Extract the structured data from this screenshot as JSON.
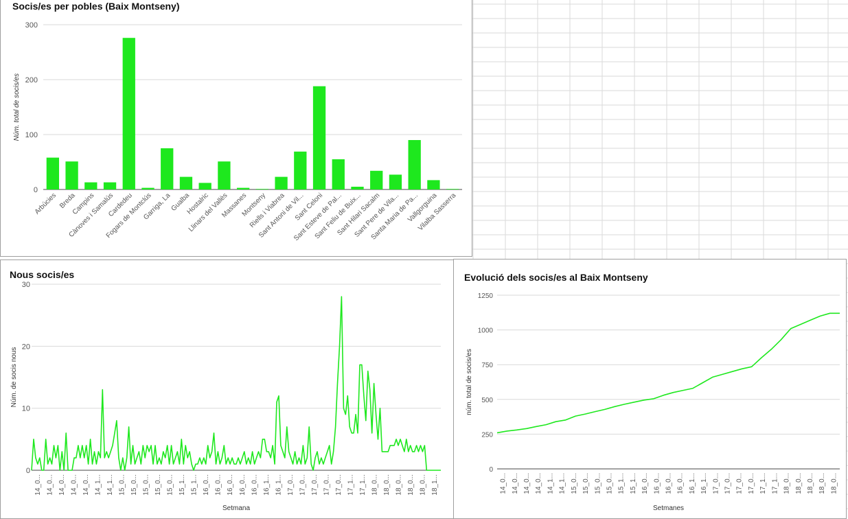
{
  "colors": {
    "series": "#1ee81e",
    "grid": "#d9d9d9",
    "axis": "#444444",
    "sheet_grid": "#dadada",
    "panel_border": "#9e9e9e"
  },
  "chart_data": [
    {
      "id": "bar",
      "type": "bar",
      "title": "Socis/es per pobles (Baix Montseny)",
      "xlabel": "",
      "ylabel": "Núm. total de socis/es",
      "ylim": [
        0,
        300
      ],
      "yticks": [
        0,
        100,
        200,
        300
      ],
      "grid": true,
      "legend": "none",
      "categories": [
        "Arbúcies",
        "Breda",
        "Campins",
        "Cànoves i Samalús",
        "Cardedeu",
        "Fogars de Montclús",
        "Garriga, La",
        "Gualba",
        "Hostalric",
        "Llinars del Vallès",
        "Massanes",
        "Montseny",
        "Riells i Viabrea",
        "Sant Antoni de Vil...",
        "Sant Celoni",
        "Sant Esteve de Pal...",
        "Sant Feliu de Buix...",
        "Sant Hilari Sacalm",
        "Sant Pere de Vila...",
        "Santa Maria de Pa...",
        "Vallgorguina",
        "Vilalba Sasserra"
      ],
      "values": [
        58,
        51,
        13,
        13,
        276,
        3,
        75,
        23,
        12,
        51,
        3,
        1,
        23,
        69,
        188,
        55,
        5,
        34,
        27,
        90,
        17,
        1
      ]
    },
    {
      "id": "new",
      "type": "line",
      "title": "Nous socis/es",
      "xlabel": "Setmana",
      "ylabel": "Núm. de socis nous",
      "ylim": [
        0,
        30
      ],
      "yticks": [
        0,
        10,
        20,
        30
      ],
      "grid": true,
      "legend": "none",
      "xtick_labels": [
        "14_0...",
        "14_0...",
        "14_0...",
        "14_0...",
        "14_0...",
        "14_1...",
        "14_1...",
        "15_0...",
        "15_0...",
        "15_0...",
        "15_0...",
        "15_0...",
        "15_1...",
        "15_1...",
        "16_0...",
        "16_0...",
        "16_0...",
        "16_0...",
        "16_0...",
        "16_1...",
        "16_1...",
        "17_0...",
        "17_0...",
        "17_0...",
        "17_0...",
        "17_0...",
        "17_1...",
        "17_1...",
        "18_0...",
        "18_0...",
        "18_0...",
        "18_0...",
        "18_0...",
        "18_1..."
      ],
      "values": [
        0,
        5,
        2,
        1,
        2,
        0,
        0,
        5,
        1,
        2,
        1,
        4,
        2,
        4,
        0,
        3,
        0,
        6,
        0,
        0,
        0,
        2,
        2,
        4,
        2,
        4,
        2,
        4,
        1,
        5,
        1,
        3,
        1,
        3,
        2,
        13,
        2,
        3,
        2,
        3,
        4,
        6,
        8,
        2,
        0,
        2,
        0,
        2,
        7,
        1,
        4,
        1,
        2,
        3,
        1,
        4,
        2,
        4,
        3,
        4,
        1,
        4,
        1,
        2,
        1,
        3,
        2,
        4,
        1,
        4,
        1,
        2,
        3,
        1,
        5,
        1,
        4,
        2,
        3,
        1,
        0,
        1,
        1,
        2,
        1,
        2,
        1,
        4,
        2,
        3,
        6,
        1,
        3,
        1,
        2,
        4,
        1,
        2,
        1,
        2,
        1,
        1,
        2,
        1,
        2,
        3,
        1,
        2,
        1,
        3,
        1,
        2,
        3,
        2,
        5,
        5,
        3,
        3,
        2,
        4,
        1,
        11,
        12,
        4,
        3,
        2,
        7,
        3,
        2,
        1,
        3,
        1,
        2,
        1,
        4,
        1,
        2,
        7,
        1,
        0,
        2,
        3,
        1,
        2,
        1,
        2,
        3,
        4,
        1,
        3,
        7,
        14,
        20,
        28,
        10,
        9,
        12,
        7,
        6,
        6,
        9,
        6,
        17,
        17,
        12,
        8,
        16,
        13,
        6,
        14,
        9,
        5,
        10,
        3,
        3,
        3,
        3,
        4,
        4,
        4,
        5,
        4,
        5,
        4,
        3,
        5,
        3,
        4,
        3,
        3,
        4,
        3,
        4,
        3,
        4,
        0,
        0,
        0,
        0,
        0,
        0,
        0,
        0
      ]
    },
    {
      "id": "evo",
      "type": "line",
      "title": "Evolució dels socis/es al Baix Montseny",
      "xlabel": "Setmanes",
      "ylabel": "núm. total de socis/es",
      "ylim": [
        0,
        1250
      ],
      "yticks": [
        0,
        250,
        500,
        750,
        1000,
        1250
      ],
      "grid": true,
      "legend": "none",
      "xtick_labels": [
        "14_0...",
        "14_0...",
        "14_0...",
        "14_0...",
        "14_1...",
        "14_1...",
        "15_0...",
        "15_0...",
        "15_0...",
        "15_0...",
        "15_1...",
        "15_1...",
        "16_0...",
        "16_0...",
        "16_0...",
        "16_0...",
        "16_1...",
        "16_1...",
        "17_0...",
        "17_0...",
        "17_0...",
        "17_0...",
        "17_1...",
        "17_1...",
        "18_0...",
        "18_0...",
        "18_0...",
        "18_0...",
        "18_0..."
      ],
      "values": [
        260,
        272,
        280,
        290,
        305,
        318,
        340,
        352,
        380,
        395,
        412,
        428,
        448,
        465,
        480,
        495,
        505,
        530,
        550,
        565,
        580,
        620,
        660,
        680,
        700,
        720,
        735,
        800,
        860,
        930,
        1010,
        1040,
        1070,
        1100,
        1120,
        1120
      ]
    }
  ]
}
